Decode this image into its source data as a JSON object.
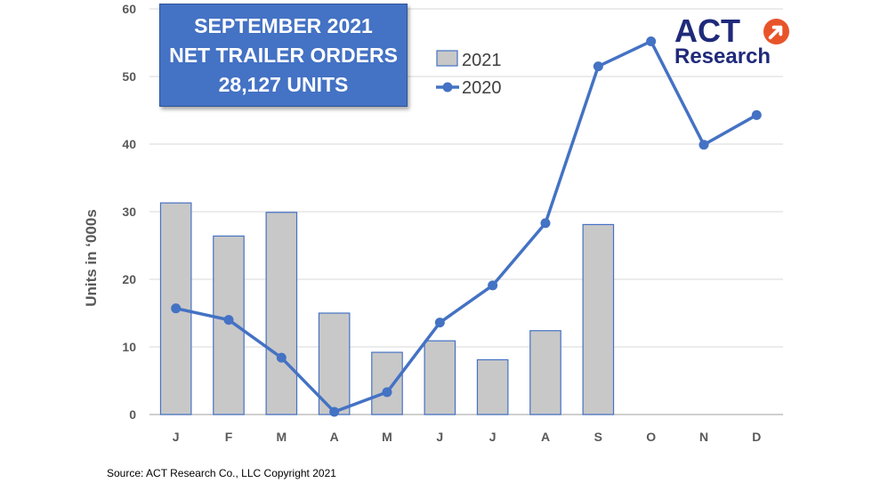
{
  "title_box": {
    "line1": "SEPTEMBER 2021",
    "line2": "NET TRAILER ORDERS",
    "line3": "28,127 UNITS",
    "background": "#4472c4"
  },
  "logo": {
    "word1": "ACT",
    "word2": "Research",
    "accent": "#e8542a",
    "color": "#1f2a7a"
  },
  "source": "Source: ACT Research Co., LLC  Copyright 2021",
  "chart_data": {
    "type": "bar",
    "categories": [
      "J",
      "F",
      "M",
      "A",
      "M",
      "J",
      "J",
      "A",
      "S",
      "O",
      "N",
      "D"
    ],
    "ylabel": "Units in ‘000s",
    "xlabel": "",
    "ylim": [
      0,
      60
    ],
    "yticks": [
      0,
      10,
      20,
      30,
      40,
      50,
      60
    ],
    "grid": true,
    "legend_position": "top-center",
    "series": [
      {
        "name": "2021",
        "type": "bar",
        "color": "#c8c8c8",
        "edge": "#4472c4",
        "values": [
          31.3,
          26.4,
          29.9,
          15.0,
          9.2,
          10.9,
          8.1,
          12.4,
          28.1,
          null,
          null,
          null
        ]
      },
      {
        "name": "2020",
        "type": "line",
        "color": "#4472c4",
        "values": [
          15.7,
          14.0,
          8.4,
          0.4,
          3.3,
          13.6,
          19.1,
          28.3,
          51.5,
          55.2,
          39.9,
          44.3
        ]
      }
    ]
  }
}
